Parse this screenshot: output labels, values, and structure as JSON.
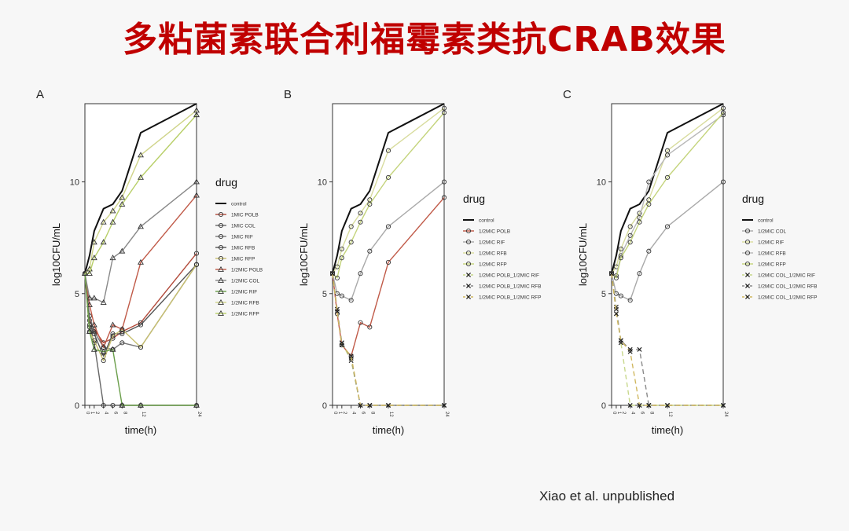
{
  "slide": {
    "title": "多粘菌素联合利福霉素类抗CRAB效果",
    "credit": "Xiao et al. unpublished"
  },
  "chart_data": [
    {
      "type": "line",
      "panel_label": "A",
      "xlabel": "time(h)",
      "ylabel": "log10CFU/mL",
      "xlim": [
        0,
        24
      ],
      "ylim": [
        0,
        13.5
      ],
      "x_ticks": [
        0,
        1,
        2,
        4,
        6,
        8,
        12,
        24
      ],
      "y_ticks": [
        0,
        5,
        10
      ],
      "legend_title": "drug",
      "legend_position": "right",
      "x": [
        0,
        1,
        2,
        4,
        6,
        8,
        12,
        24
      ],
      "series": [
        {
          "name": "control",
          "color": "#111111",
          "dash": "",
          "marker": "none",
          "values": [
            5.9,
            6.7,
            7.8,
            8.8,
            9.0,
            9.6,
            12.2,
            13.5
          ]
        },
        {
          "name": "1MIC POLB",
          "color": "#b24a3a",
          "dash": "",
          "marker": "circle",
          "values": [
            5.9,
            3.8,
            3.4,
            2.8,
            3.0,
            3.3,
            3.7,
            6.8
          ]
        },
        {
          "name": "1MIC COL",
          "color": "#666666",
          "dash": "",
          "marker": "circle",
          "values": [
            5.9,
            3.5,
            2.8,
            0.0,
            0.0,
            0.0,
            0.0,
            0.0
          ]
        },
        {
          "name": "1MIC RIF",
          "color": "#777777",
          "dash": "",
          "marker": "circle",
          "values": [
            5.9,
            4.0,
            3.3,
            2.6,
            2.5,
            2.8,
            2.6,
            6.3
          ]
        },
        {
          "name": "1MIC RFB",
          "color": "#555555",
          "dash": "",
          "marker": "circle",
          "values": [
            5.9,
            3.6,
            3.2,
            2.2,
            3.2,
            3.2,
            3.6,
            6.3
          ]
        },
        {
          "name": "1MIC RFP",
          "color": "#c8c070",
          "dash": "",
          "marker": "circle",
          "values": [
            5.9,
            3.3,
            2.9,
            2.0,
            3.1,
            3.4,
            2.6,
            6.3
          ]
        },
        {
          "name": "1/2MIC POLB",
          "color": "#c05a48",
          "dash": "",
          "marker": "triangle",
          "values": [
            5.9,
            4.5,
            3.6,
            2.6,
            3.6,
            3.4,
            6.4,
            9.4
          ]
        },
        {
          "name": "1/2MIC COL",
          "color": "#888888",
          "dash": "",
          "marker": "triangle",
          "values": [
            5.9,
            4.8,
            4.8,
            4.6,
            6.6,
            6.9,
            8.0,
            10.0
          ]
        },
        {
          "name": "1/2MIC RIF",
          "color": "#6a9e4a",
          "dash": "",
          "marker": "triangle",
          "values": [
            5.9,
            3.3,
            2.5,
            2.4,
            2.5,
            0.0,
            0.0,
            0.0
          ]
        },
        {
          "name": "1/2MIC RFB",
          "color": "#cfd48a",
          "dash": "",
          "marker": "triangle",
          "values": [
            5.9,
            6.1,
            7.3,
            8.2,
            8.7,
            9.3,
            11.2,
            13.2
          ]
        },
        {
          "name": "1/2MIC RFP",
          "color": "#b8cf68",
          "dash": "",
          "marker": "triangle",
          "values": [
            5.9,
            5.9,
            6.6,
            7.3,
            8.2,
            9.0,
            10.2,
            13.0
          ]
        }
      ]
    },
    {
      "type": "line",
      "panel_label": "B",
      "xlabel": "time(h)",
      "ylabel": "log10CFU/mL",
      "xlim": [
        0,
        24
      ],
      "ylim": [
        0,
        13.5
      ],
      "x_ticks": [
        0,
        1,
        2,
        4,
        6,
        8,
        12,
        24
      ],
      "y_ticks": [
        0,
        5,
        10
      ],
      "legend_title": "drug",
      "legend_position": "right",
      "x": [
        0,
        1,
        2,
        4,
        6,
        8,
        12,
        24
      ],
      "series": [
        {
          "name": "control",
          "color": "#111111",
          "dash": "",
          "marker": "none",
          "values": [
            5.9,
            6.7,
            7.8,
            8.8,
            9.0,
            9.6,
            12.2,
            13.5
          ]
        },
        {
          "name": "1/2MIC POLB",
          "color": "#c05a48",
          "dash": "",
          "marker": "circle",
          "values": [
            5.9,
            4.1,
            2.7,
            2.2,
            3.7,
            3.5,
            6.4,
            9.3
          ]
        },
        {
          "name": "1/2MIC RIF",
          "color": "#a9a9a9",
          "dash": "",
          "marker": "circle",
          "values": [
            5.9,
            5.0,
            4.9,
            4.7,
            5.9,
            6.9,
            8.0,
            10.0
          ]
        },
        {
          "name": "1/2MIC RFB",
          "color": "#d8dc9e",
          "dash": "",
          "marker": "circle",
          "values": [
            5.9,
            6.2,
            7.0,
            8.0,
            8.6,
            9.2,
            11.4,
            13.3
          ]
        },
        {
          "name": "1/2MIC RFP",
          "color": "#c4d47c",
          "dash": "",
          "marker": "circle",
          "values": [
            5.9,
            5.7,
            6.6,
            7.3,
            8.2,
            9.0,
            10.2,
            13.1
          ]
        },
        {
          "name": "1/2MIC POLB_1/2MIC RIF",
          "color": "#c8d88c",
          "dash": "6,4",
          "marker": "cross",
          "values": [
            5.9,
            4.2,
            2.8,
            2.0,
            0.0,
            0.0,
            0.0,
            0.0
          ]
        },
        {
          "name": "1/2MIC POLB_1/2MIC RFB",
          "color": "#8a8a8a",
          "dash": "6,4",
          "marker": "cross",
          "values": [
            5.9,
            4.3,
            2.8,
            2.1,
            0.0,
            0.0,
            0.0,
            0.0
          ]
        },
        {
          "name": "1/2MIC POLB_1/2MIC RFP",
          "color": "#d0b860",
          "dash": "6,4",
          "marker": "cross",
          "values": [
            5.9,
            4.2,
            2.7,
            2.2,
            0.0,
            0.0,
            0.0,
            0.0
          ]
        }
      ]
    },
    {
      "type": "line",
      "panel_label": "C",
      "xlabel": "time(h)",
      "ylabel": "log10CFU/mL",
      "xlim": [
        0,
        24
      ],
      "ylim": [
        0,
        13.5
      ],
      "x_ticks": [
        0,
        1,
        2,
        4,
        6,
        8,
        12,
        24
      ],
      "y_ticks": [
        0,
        5,
        10
      ],
      "legend_title": "drug",
      "legend_position": "right",
      "x": [
        0,
        1,
        2,
        4,
        6,
        8,
        12,
        24
      ],
      "series": [
        {
          "name": "control",
          "color": "#111111",
          "dash": "",
          "marker": "none",
          "values": [
            5.9,
            6.7,
            7.8,
            8.8,
            9.0,
            9.6,
            12.2,
            13.5
          ]
        },
        {
          "name": "1/2MIC COL",
          "color": "#a9a9a9",
          "dash": "",
          "marker": "circle",
          "values": [
            5.9,
            5.0,
            4.9,
            4.7,
            5.9,
            6.9,
            8.0,
            10.0
          ]
        },
        {
          "name": "1/2MIC RIF",
          "color": "#d8dc9e",
          "dash": "",
          "marker": "circle",
          "values": [
            5.9,
            6.2,
            7.0,
            8.0,
            8.6,
            9.2,
            11.4,
            13.3
          ]
        },
        {
          "name": "1/2MIC RFB",
          "color": "#b7b7b7",
          "dash": "",
          "marker": "circle",
          "values": [
            5.9,
            5.8,
            6.7,
            7.6,
            8.4,
            10.0,
            11.2,
            13.0
          ]
        },
        {
          "name": "1/2MIC RFP",
          "color": "#c4d47c",
          "dash": "",
          "marker": "circle",
          "values": [
            5.9,
            5.7,
            6.6,
            7.3,
            8.2,
            9.0,
            10.2,
            13.1
          ]
        },
        {
          "name": "1/2MIC COL_1/2MIC RIF",
          "color": "#c8d88c",
          "dash": "6,4",
          "marker": "cross",
          "values": [
            5.9,
            4.4,
            2.8,
            0.0,
            0.0,
            0.0,
            0.0,
            0.0
          ]
        },
        {
          "name": "1/2MIC COL_1/2MIC RFB",
          "color": "#8a8a8a",
          "dash": "6,4",
          "marker": "cross",
          "values": [
            5.9,
            4.3,
            2.9,
            2.5,
            2.5,
            0.0,
            0.0,
            0.0
          ]
        },
        {
          "name": "1/2MIC COL_1/2MIC RFP",
          "color": "#d0b860",
          "dash": "6,4",
          "marker": "cross",
          "values": [
            5.9,
            4.1,
            2.9,
            2.4,
            0.0,
            0.0,
            0.0,
            0.0
          ]
        }
      ]
    }
  ]
}
